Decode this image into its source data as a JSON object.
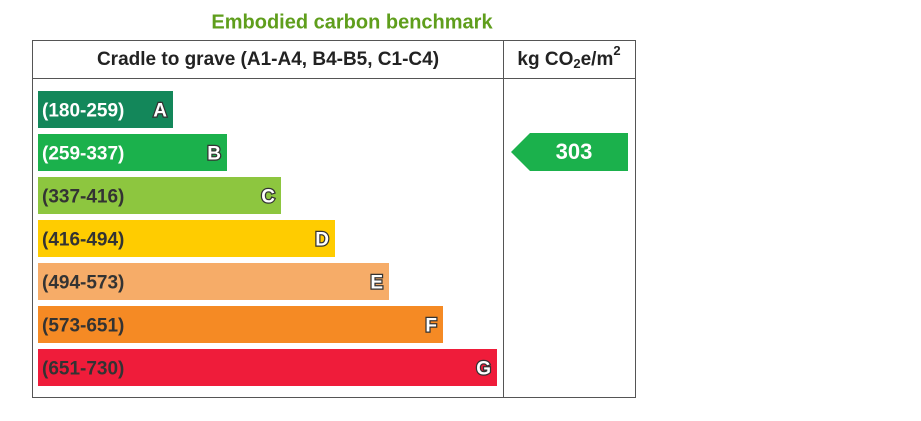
{
  "title": "Embodied carbon benchmark",
  "header": {
    "scope": "Cradle to grave (A1-A4, B4-B5, C1-C4)",
    "unit": {
      "text": "kg CO",
      "sub": "2",
      "mid": "e/m",
      "sup": "2"
    }
  },
  "bands": [
    {
      "range": "(180-259)",
      "letter": "A",
      "color": "#13875a",
      "text_color": "#ffffff"
    },
    {
      "range": "(259-337)",
      "letter": "B",
      "color": "#1bb14c",
      "text_color": "#ffffff"
    },
    {
      "range": "(337-416)",
      "letter": "C",
      "color": "#8dc63f",
      "text_color": "#333333"
    },
    {
      "range": "(416-494)",
      "letter": "D",
      "color": "#ffcc00",
      "text_color": "#333333"
    },
    {
      "range": "(494-573)",
      "letter": "E",
      "color": "#f6ac68",
      "text_color": "#333333"
    },
    {
      "range": "(573-651)",
      "letter": "F",
      "color": "#f58a24",
      "text_color": "#333333"
    },
    {
      "range": "(651-730)",
      "letter": "G",
      "color": "#ef1c3a",
      "text_color": "#333333"
    }
  ],
  "rating": {
    "value": 303,
    "band": "B"
  }
}
